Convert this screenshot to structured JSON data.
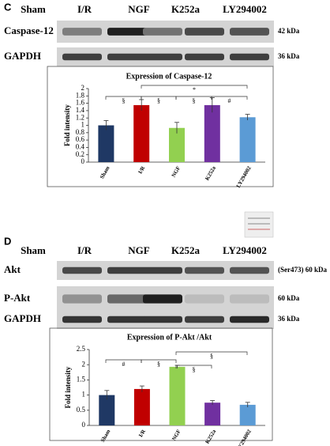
{
  "panels": [
    {
      "label": "C",
      "lanes": [
        "Sham",
        "I/R",
        "NGF",
        "K252a",
        "LY294002"
      ],
      "blots": [
        {
          "name": "Caspase-12",
          "size": "42 kDa"
        },
        {
          "name": "GAPDH",
          "size": "36 kDa"
        }
      ]
    },
    {
      "label": "D",
      "lanes": [
        "Sham",
        "I/R",
        "NGF",
        "K252a",
        "LY294002"
      ],
      "blots": [
        {
          "name": "Akt",
          "size": "(Ser473) 60 kDa"
        },
        {
          "name": "P-Akt",
          "size": "60 kDa"
        },
        {
          "name": "GAPDH",
          "size": "36 kDa"
        }
      ]
    }
  ],
  "chart_data": [
    {
      "type": "bar",
      "title": "Expression  of Caspase-12",
      "ylabel": "Fold intensity",
      "categories": [
        "Sham",
        "I/R",
        "NGF",
        "K252a",
        "LY294002"
      ],
      "values": [
        1.0,
        1.55,
        0.93,
        1.55,
        1.22
      ],
      "errors": [
        0.13,
        0.15,
        0.15,
        0.2,
        0.08
      ],
      "colors": [
        "#1f3864",
        "#c00000",
        "#92d050",
        "#7030a0",
        "#5b9bd5"
      ],
      "ylim": [
        0,
        2
      ],
      "yticks": [
        0,
        0.2,
        0.4,
        0.6,
        0.8,
        1,
        1.2,
        1.4,
        1.6,
        1.8,
        2
      ],
      "annotations": [
        "§",
        "§",
        "§",
        "#",
        "*"
      ]
    },
    {
      "type": "bar",
      "title": "Expression  of P-Akt /Akt",
      "ylabel": "Fold intensity",
      "categories": [
        "Sham",
        "I/R",
        "NGF",
        "K252a",
        "LY294002"
      ],
      "values": [
        1.0,
        1.2,
        1.93,
        0.75,
        0.68
      ],
      "errors": [
        0.15,
        0.1,
        0.05,
        0.07,
        0.08
      ],
      "colors": [
        "#1f3864",
        "#c00000",
        "#92d050",
        "#7030a0",
        "#5b9bd5"
      ],
      "ylim": [
        0,
        2.5
      ],
      "yticks": [
        0,
        0.5,
        1,
        1.5,
        2,
        2.5
      ],
      "annotations": [
        "#",
        "§",
        "§",
        "§"
      ]
    }
  ]
}
